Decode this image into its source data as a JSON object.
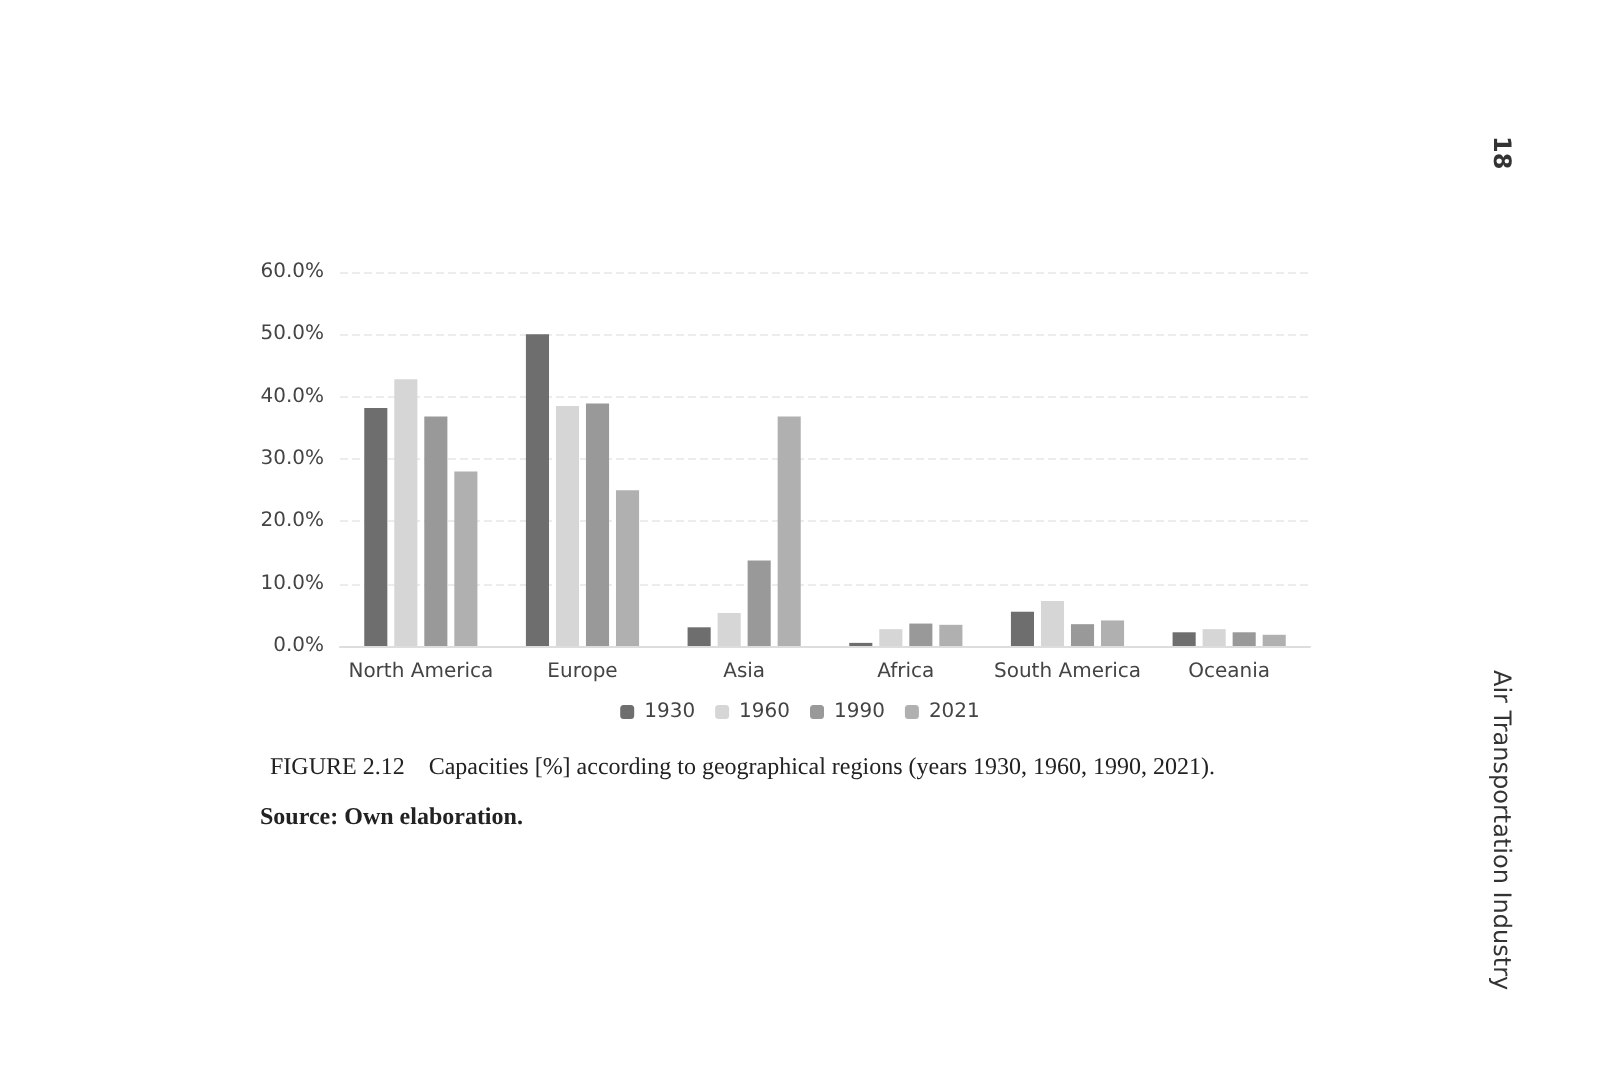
{
  "chart_data": {
    "type": "bar",
    "title": "FIGURE 2.12    Capacities [%] according to geographical regions (years 1930, 1960, 1990, 2021).",
    "annotations": [
      "Source: Own elaboration.",
      "18",
      "Air Transportation Industry"
    ],
    "categories": [
      "North America",
      "Europe",
      "Asia",
      "Africa",
      "South America",
      "Oceania"
    ],
    "series": [
      {
        "name": "1930",
        "color": "#6e6e6e",
        "values": [
          38.2,
          50.0,
          3.0,
          0.5,
          5.5,
          2.2
        ]
      },
      {
        "name": "1960",
        "color": "#d6d6d6",
        "values": [
          42.8,
          38.5,
          5.3,
          2.7,
          7.2,
          2.7
        ]
      },
      {
        "name": "1990",
        "color": "#999999",
        "values": [
          36.8,
          38.9,
          13.7,
          3.6,
          3.5,
          2.2
        ]
      },
      {
        "name": "2021",
        "color": "#b0b0b0",
        "values": [
          28.0,
          25.0,
          36.8,
          3.4,
          4.1,
          1.8
        ]
      }
    ],
    "ylim": [
      0,
      60
    ],
    "yticks": [
      {
        "value": 0,
        "label": "0.0%"
      },
      {
        "value": 10,
        "label": "10.0%"
      },
      {
        "value": 20,
        "label": "20.0%"
      },
      {
        "value": 30,
        "label": "30.0%"
      },
      {
        "value": 40,
        "label": "40.0%"
      },
      {
        "value": 50,
        "label": "50.0%"
      },
      {
        "value": 60,
        "label": "60.0%"
      }
    ],
    "grid": "y",
    "legend": "bottom"
  }
}
